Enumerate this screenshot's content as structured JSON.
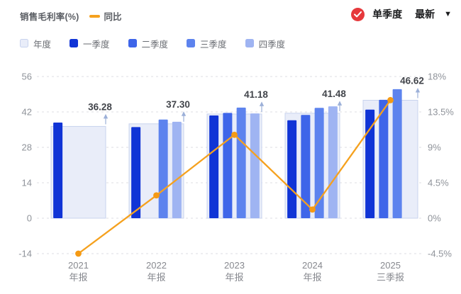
{
  "header": {
    "title": "销售毛利率(%)",
    "yoy_label": "同比",
    "controls": {
      "quarter_mode_label": "单季度",
      "latest_label": "最新"
    }
  },
  "legend": {
    "items": [
      {
        "label": "年度",
        "color": "#e9edf9",
        "border": "#c8d3ee"
      },
      {
        "label": "一季度",
        "color": "#1034d6"
      },
      {
        "label": "二季度",
        "color": "#3e65e9"
      },
      {
        "label": "三季度",
        "color": "#5d83ee"
      },
      {
        "label": "四季度",
        "color": "#9fb4f2"
      }
    ]
  },
  "chart_data": {
    "type": "bar+line",
    "title": "销售毛利率(%) 单季度",
    "categories": [
      "2021 年报",
      "2022 年报",
      "2023 年报",
      "2024 年报",
      "2025 三季报"
    ],
    "category_lines": [
      [
        "2021",
        "年报"
      ],
      [
        "2022",
        "年报"
      ],
      [
        "2023",
        "年报"
      ],
      [
        "2024",
        "年报"
      ],
      [
        "2025",
        "三季报"
      ]
    ],
    "annual_series": {
      "name": "年度",
      "fill": "#e9edf9",
      "border": "#c8d3ee",
      "values": [
        36.28,
        37.3,
        41.18,
        41.48,
        46.62
      ],
      "labels": [
        "36.28",
        "37.30",
        "41.18",
        "41.48",
        "46.62"
      ]
    },
    "quarter_series": [
      {
        "name": "一季度",
        "color": "#1034d6",
        "values": [
          37.8,
          36.0,
          40.6,
          38.7,
          42.9
        ]
      },
      {
        "name": "二季度",
        "color": "#3e65e9",
        "values": [
          null,
          null,
          41.6,
          40.8,
          46.8
        ]
      },
      {
        "name": "三季度",
        "color": "#5d83ee",
        "values": [
          null,
          39.0,
          43.7,
          43.6,
          51.0
        ]
      },
      {
        "name": "四季度",
        "color": "#9fb4f2",
        "values": [
          null,
          38.1,
          41.4,
          44.2,
          null
        ]
      }
    ],
    "line_series": {
      "name": "同比",
      "color": "#f5a11e",
      "values_pct": [
        -4.5,
        2.9,
        10.6,
        1.1,
        15.0
      ]
    },
    "left_axis": {
      "ticks": [
        "56",
        "42",
        "28",
        "14",
        "0",
        "-14"
      ],
      "units_per_step": 14
    },
    "right_axis": {
      "ticks": [
        "18%",
        "13.5%",
        "9%",
        "4.5%",
        "0%",
        "-4.5%"
      ],
      "pct_per_step": 4.5
    },
    "grid": "dashed-horizontal",
    "annotation_arrow_color": "#9cb0d8"
  }
}
